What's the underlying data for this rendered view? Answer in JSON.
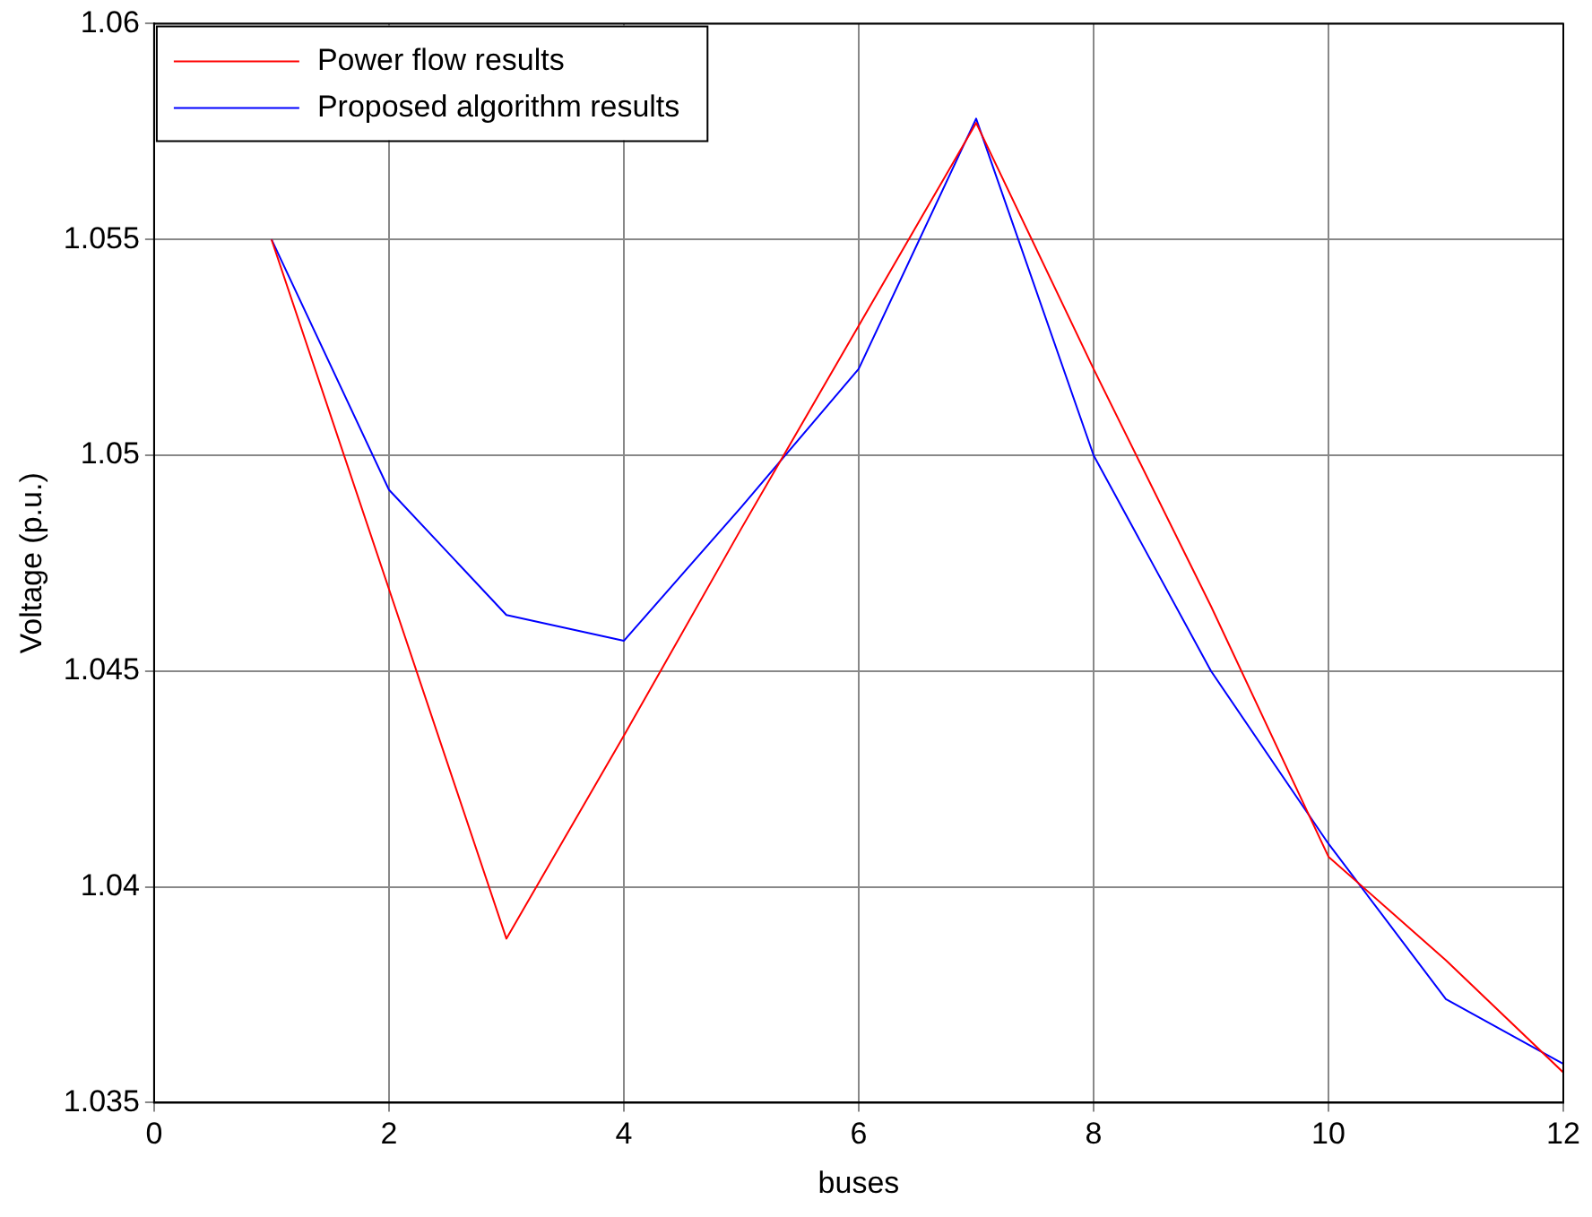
{
  "chart_data": {
    "type": "line",
    "xlabel": "buses",
    "ylabel": "Voltage (p.u.)",
    "x": [
      1,
      2,
      3,
      4,
      5,
      6,
      7,
      8,
      9,
      10,
      11,
      12
    ],
    "series": [
      {
        "name": "Power flow results",
        "color": "#ff0000",
        "values": [
          1.055,
          1.0469,
          1.0388,
          1.0435,
          1.0483,
          1.053,
          1.0577,
          1.052,
          1.0465,
          1.0407,
          1.0383,
          1.0357
        ]
      },
      {
        "name": "Proposed algorithm results",
        "color": "#0000ff",
        "values": [
          1.055,
          1.0492,
          1.0463,
          1.0457,
          1.0488,
          1.052,
          1.0578,
          1.05,
          1.045,
          1.041,
          1.0374,
          1.0359
        ]
      }
    ],
    "xlim": [
      0,
      12
    ],
    "xticks": [
      0,
      2,
      4,
      6,
      8,
      10,
      12
    ],
    "ylim": [
      1.035,
      1.06
    ],
    "yticks": [
      1.035,
      1.04,
      1.045,
      1.05,
      1.055,
      1.06
    ],
    "grid": true,
    "legend": "top left",
    "marker": "none",
    "line_style": "solid"
  }
}
